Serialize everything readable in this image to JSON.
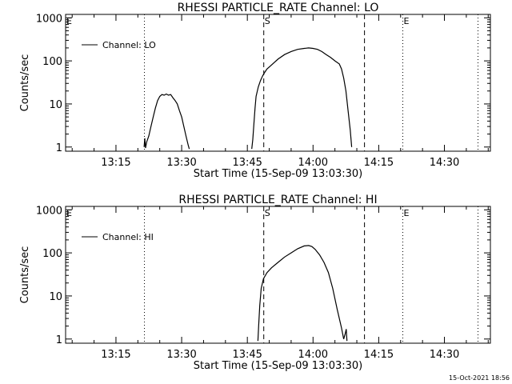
{
  "footer_timestamp": "15-Oct-2021 18:56",
  "chart_data": [
    {
      "type": "line",
      "title": "RHESSI PARTICLE_RATE Channel: LO",
      "xlabel": "Start Time (15-Sep-09 13:03:30)",
      "ylabel": "Counts/sec",
      "y_scale": "log",
      "ylim": [
        0.8,
        1200
      ],
      "xlim": [
        "13:03:30",
        "14:40:30"
      ],
      "x_ticks": [
        "13:15",
        "13:30",
        "13:45",
        "14:00",
        "14:15",
        "14:30"
      ],
      "y_ticks": [
        "1",
        "10",
        "100",
        "1000"
      ],
      "legend": {
        "label": "Channel: LO",
        "position": "top-left"
      },
      "markers": [
        {
          "time": "13:21:30",
          "style": "dotted",
          "label": ""
        },
        {
          "time": "13:48:45",
          "style": "dashed",
          "label": "S"
        },
        {
          "time": "14:11:45",
          "style": "dashed",
          "label": ""
        },
        {
          "time": "14:20:30",
          "style": "dotted",
          "label": "E"
        },
        {
          "time": "14:37:40",
          "style": "dotted",
          "label": ""
        }
      ],
      "corner_mark": "E",
      "series": [
        {
          "name": "Channel: LO",
          "segments": [
            [
              [
                "13:21:25",
                1.0
              ],
              [
                "13:21:35",
                1.6
              ],
              [
                "13:21:45",
                0.95
              ],
              [
                "13:22:00",
                1.3
              ],
              [
                "13:22:30",
                1.8
              ],
              [
                "13:23:00",
                3.0
              ],
              [
                "13:23:30",
                5.0
              ],
              [
                "13:24:00",
                8.0
              ],
              [
                "13:24:30",
                12.0
              ],
              [
                "13:25:00",
                15.0
              ],
              [
                "13:25:30",
                16.5
              ],
              [
                "13:26:00",
                16.0
              ],
              [
                "13:26:30",
                17.0
              ],
              [
                "13:27:00",
                16.0
              ],
              [
                "13:27:30",
                16.5
              ],
              [
                "13:28:00",
                14.0
              ],
              [
                "13:28:30",
                12.0
              ],
              [
                "13:29:00",
                10.0
              ],
              [
                "13:29:30",
                7.0
              ],
              [
                "13:30:00",
                5.0
              ],
              [
                "13:30:30",
                3.0
              ],
              [
                "13:31:00",
                1.8
              ],
              [
                "13:31:30",
                1.1
              ],
              [
                "13:31:45",
                0.9
              ]
            ],
            [
              [
                "13:46:00",
                0.9
              ],
              [
                "13:46:15",
                1.5
              ],
              [
                "13:46:30",
                3.5
              ],
              [
                "13:46:45",
                8.0
              ],
              [
                "13:47:00",
                15.0
              ],
              [
                "13:47:30",
                25.0
              ],
              [
                "13:48:00",
                35.0
              ],
              [
                "13:48:30",
                45.0
              ],
              [
                "13:49:00",
                55.0
              ],
              [
                "13:49:30",
                65.0
              ],
              [
                "13:50:30",
                80.0
              ],
              [
                "13:52:00",
                110.0
              ],
              [
                "13:53:30",
                140.0
              ],
              [
                "13:55:00",
                165.0
              ],
              [
                "13:56:30",
                185.0
              ],
              [
                "13:58:00",
                195.0
              ],
              [
                "13:59:00",
                200.0
              ],
              [
                "14:00:00",
                195.0
              ],
              [
                "14:01:00",
                185.0
              ],
              [
                "14:02:00",
                165.0
              ],
              [
                "14:03:00",
                140.0
              ],
              [
                "14:04:00",
                120.0
              ],
              [
                "14:05:00",
                100.0
              ],
              [
                "14:06:00",
                85.0
              ],
              [
                "14:06:30",
                65.0
              ],
              [
                "14:07:00",
                40.0
              ],
              [
                "14:07:30",
                20.0
              ],
              [
                "14:08:00",
                7.0
              ],
              [
                "14:08:30",
                2.5
              ],
              [
                "14:08:50",
                1.0
              ]
            ]
          ]
        }
      ]
    },
    {
      "type": "line",
      "title": "RHESSI PARTICLE_RATE Channel: HI",
      "xlabel": "Start Time (15-Sep-09 13:03:30)",
      "ylabel": "Counts/sec",
      "y_scale": "log",
      "ylim": [
        0.8,
        1200
      ],
      "xlim": [
        "13:03:30",
        "14:40:30"
      ],
      "x_ticks": [
        "13:15",
        "13:30",
        "13:45",
        "14:00",
        "14:15",
        "14:30"
      ],
      "y_ticks": [
        "1",
        "10",
        "100",
        "1000"
      ],
      "legend": {
        "label": "Channel: HI",
        "position": "top-left"
      },
      "markers": [
        {
          "time": "13:21:30",
          "style": "dotted",
          "label": ""
        },
        {
          "time": "13:48:45",
          "style": "dashed",
          "label": "S"
        },
        {
          "time": "14:11:45",
          "style": "dashed",
          "label": ""
        },
        {
          "time": "14:20:30",
          "style": "dotted",
          "label": "E"
        },
        {
          "time": "14:37:40",
          "style": "dotted",
          "label": ""
        }
      ],
      "corner_mark": "E",
      "series": [
        {
          "name": "Channel: HI",
          "segments": [
            [
              [
                "13:47:25",
                0.9
              ],
              [
                "13:47:35",
                2.0
              ],
              [
                "13:47:50",
                6.0
              ],
              [
                "13:48:10",
                15.0
              ],
              [
                "13:48:40",
                25.0
              ],
              [
                "13:49:30",
                35.0
              ],
              [
                "13:50:30",
                45.0
              ],
              [
                "13:52:00",
                60.0
              ],
              [
                "13:53:30",
                80.0
              ],
              [
                "13:55:00",
                100.0
              ],
              [
                "13:56:30",
                125.0
              ],
              [
                "13:58:00",
                145.0
              ],
              [
                "13:59:00",
                148.0
              ],
              [
                "13:59:45",
                140.0
              ],
              [
                "14:00:30",
                120.0
              ],
              [
                "14:01:30",
                90.0
              ],
              [
                "14:02:30",
                60.0
              ],
              [
                "14:03:30",
                35.0
              ],
              [
                "14:04:30",
                15.0
              ],
              [
                "14:05:30",
                5.0
              ],
              [
                "14:06:30",
                1.8
              ],
              [
                "14:07:00",
                1.0
              ],
              [
                "14:07:20",
                1.3
              ],
              [
                "14:07:35",
                1.7
              ],
              [
                "14:07:45",
                0.9
              ]
            ]
          ]
        }
      ]
    }
  ]
}
